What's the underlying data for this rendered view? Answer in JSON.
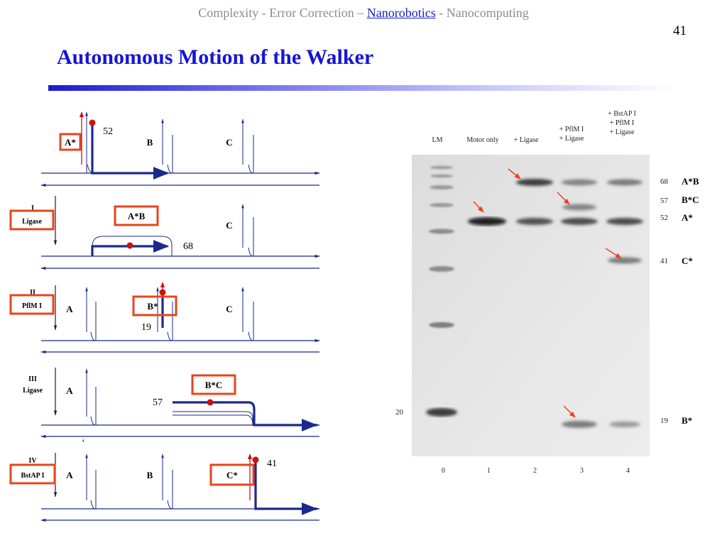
{
  "header": {
    "breadcrumb": [
      {
        "label": "Complexity - Error Correction – ",
        "active": false
      },
      {
        "label": "Nanorobotics",
        "active": true
      },
      {
        "label": " - Nanocomputing",
        "active": false
      }
    ],
    "slide_number": "41",
    "title": "Autonomous Motion of the Walker"
  },
  "colors": {
    "title": "#1515d6",
    "strand": "#1a2a8c",
    "highlight_box": "#e8441c",
    "marker": "#cc1111"
  },
  "diagram": {
    "steps": [
      {
        "labels": {
          "a": "A*",
          "b": "B",
          "c": "C"
        },
        "length": "52"
      },
      {
        "numeral": "I",
        "enzyme": "Ligase",
        "labels": {
          "ab": "A*B",
          "c": "C"
        },
        "length": "68"
      },
      {
        "numeral": "II",
        "enzyme": "PflM I",
        "labels": {
          "a": "A",
          "b": "B*",
          "c": "C"
        },
        "length": "19"
      },
      {
        "numeral": "III",
        "enzyme": "Ligase",
        "labels": {
          "a": "A",
          "bc": "B*C"
        },
        "length": "57",
        "small_mark": "4"
      },
      {
        "numeral": "IV",
        "enzyme": "BstAP I",
        "labels": {
          "a": "A",
          "b": "B",
          "c": "C*"
        },
        "length": "41"
      }
    ]
  },
  "gel": {
    "lane_headers": [
      {
        "lines": [
          "LM"
        ]
      },
      {
        "lines": [
          "Motor only"
        ]
      },
      {
        "lines": [
          "+ Ligase"
        ]
      },
      {
        "lines": [
          "+ PflM I",
          "+ Ligase"
        ]
      },
      {
        "lines": [
          "+ BstAP I",
          "+ PflM I",
          "+ Ligase"
        ]
      }
    ],
    "lane_numbers": [
      "0",
      "1",
      "2",
      "3",
      "4"
    ],
    "marker_size": "20",
    "band_labels": [
      {
        "size": "68",
        "name": "A*B"
      },
      {
        "size": "57",
        "name": "B*C"
      },
      {
        "size": "52",
        "name": "A*"
      },
      {
        "size": "41",
        "name": "C*"
      },
      {
        "size": "19",
        "name": "B*"
      }
    ]
  }
}
